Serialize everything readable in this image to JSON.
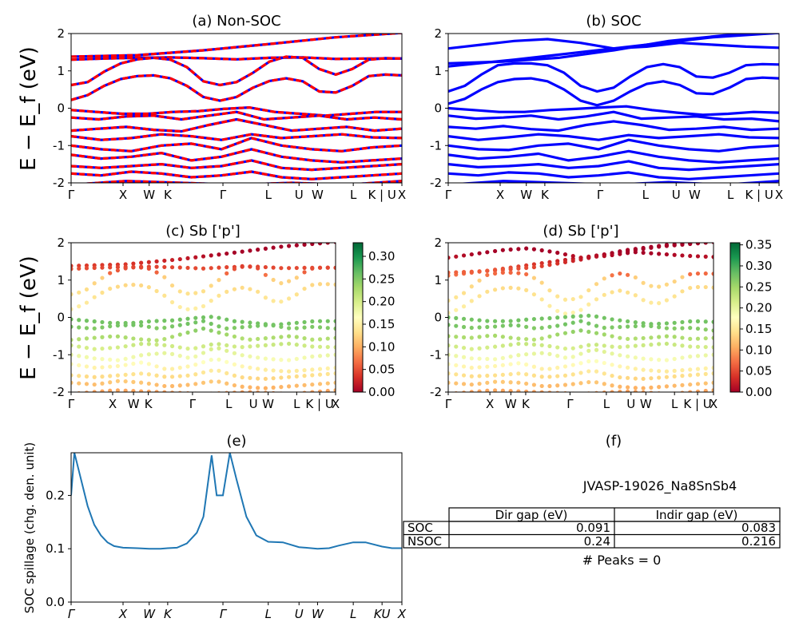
{
  "colors": {
    "band_blue": "#0000ff",
    "band_red": "#ff0000",
    "spillage_line": "#1f77b4"
  },
  "ylabel": "E − E_f (eV)",
  "chart_data": [
    {
      "id": "a",
      "type": "line",
      "title": "(a) Non-SOC",
      "ylim": [
        -2,
        2
      ],
      "yticks": [
        2,
        1,
        0,
        -1,
        -2
      ],
      "xticks": [
        [
          "Γ",
          0
        ],
        [
          "X",
          0.157
        ],
        [
          "W",
          0.236
        ],
        [
          "K",
          0.292
        ],
        [
          "Γ",
          0.459
        ],
        [
          "L",
          0.596
        ],
        [
          "U",
          0.689
        ],
        [
          "W",
          0.745
        ],
        [
          "L",
          0.853
        ],
        [
          "K | U",
          0.94
        ],
        [
          "X",
          1.0
        ]
      ],
      "bands": [
        [
          1.38,
          1.42,
          1.55,
          1.72,
          1.9,
          2.02
        ],
        [
          1.3,
          1.33,
          1.35,
          1.36,
          1.34,
          1.31,
          1.35,
          1.36,
          1.32,
          1.33,
          1.33
        ],
        [
          0.62,
          0.7,
          0.98,
          1.2,
          1.31,
          1.35,
          1.3,
          1.1,
          0.72,
          0.62,
          0.7,
          0.95,
          1.25,
          1.38,
          1.35,
          1.05,
          0.9,
          1.05,
          1.3,
          1.34,
          1.33
        ],
        [
          0.22,
          0.35,
          0.6,
          0.78,
          0.86,
          0.88,
          0.8,
          0.6,
          0.3,
          0.2,
          0.3,
          0.55,
          0.73,
          0.8,
          0.72,
          0.45,
          0.42,
          0.6,
          0.86,
          0.9,
          0.88
        ],
        [
          -0.05,
          -0.1,
          -0.15,
          -0.15,
          -0.1,
          -0.08,
          -0.02,
          0.02,
          -0.1,
          -0.15,
          -0.2,
          -0.15,
          -0.1,
          -0.1
        ],
        [
          -0.25,
          -0.3,
          -0.22,
          -0.2,
          -0.3,
          -0.2,
          -0.1,
          -0.3,
          -0.25,
          -0.2,
          -0.3,
          -0.25,
          -0.3
        ],
        [
          -0.6,
          -0.55,
          -0.5,
          -0.58,
          -0.62,
          -0.45,
          -0.3,
          -0.45,
          -0.6,
          -0.55,
          -0.5,
          -0.6,
          -0.55
        ],
        [
          -0.75,
          -0.85,
          -0.8,
          -0.7,
          -0.75,
          -0.85,
          -0.7,
          -0.8,
          -0.75,
          -0.7,
          -0.78,
          -0.8
        ],
        [
          -1.0,
          -1.1,
          -1.15,
          -1.0,
          -0.95,
          -1.1,
          -0.8,
          -1.0,
          -1.1,
          -1.15,
          -1.05,
          -1.0
        ],
        [
          -1.25,
          -1.35,
          -1.3,
          -1.2,
          -1.4,
          -1.3,
          -1.1,
          -1.3,
          -1.4,
          -1.45,
          -1.4,
          -1.35
        ],
        [
          -1.55,
          -1.6,
          -1.55,
          -1.5,
          -1.6,
          -1.55,
          -1.4,
          -1.6,
          -1.65,
          -1.6,
          -1.55,
          -1.5
        ],
        [
          -1.75,
          -1.8,
          -1.7,
          -1.75,
          -1.85,
          -1.8,
          -1.7,
          -1.85,
          -1.9,
          -1.85,
          -1.8,
          -1.75
        ],
        [
          -2.05,
          -1.95,
          -2.0,
          -2.05,
          -2.0,
          -2.05,
          -1.95
        ]
      ]
    },
    {
      "id": "b",
      "type": "line",
      "title": "(b) SOC",
      "ylim": [
        -2,
        2
      ],
      "yticks": [
        2,
        1,
        0,
        -1,
        -2
      ],
      "xticks": [
        [
          "Γ",
          0
        ],
        [
          "X",
          0.157
        ],
        [
          "W",
          0.236
        ],
        [
          "K",
          0.292
        ],
        [
          "Γ",
          0.459
        ],
        [
          "L",
          0.596
        ],
        [
          "U",
          0.689
        ],
        [
          "W",
          0.745
        ],
        [
          "L",
          0.853
        ],
        [
          "K | U",
          0.94
        ],
        [
          "X",
          1.0
        ]
      ],
      "bands": [
        [
          1.12,
          1.3,
          1.5,
          1.7,
          1.9,
          2.02
        ],
        [
          1.2,
          1.25,
          1.35,
          1.55,
          1.8,
          1.95,
          2.02
        ],
        [
          1.6,
          1.7,
          1.8,
          1.85,
          1.75,
          1.6,
          1.65,
          1.75,
          1.7,
          1.65,
          1.62
        ],
        [
          0.45,
          0.6,
          0.9,
          1.15,
          1.2,
          1.2,
          1.15,
          0.95,
          0.6,
          0.45,
          0.55,
          0.85,
          1.1,
          1.18,
          1.1,
          0.85,
          0.82,
          0.95,
          1.15,
          1.18,
          1.17
        ],
        [
          0.12,
          0.25,
          0.5,
          0.7,
          0.78,
          0.8,
          0.72,
          0.5,
          0.2,
          0.08,
          0.2,
          0.45,
          0.65,
          0.72,
          0.62,
          0.4,
          0.38,
          0.55,
          0.78,
          0.82,
          0.8
        ],
        [
          0.0,
          -0.05,
          -0.1,
          -0.1,
          -0.05,
          -0.02,
          0.02,
          0.05,
          -0.05,
          -0.12,
          -0.18,
          -0.15,
          -0.1,
          -0.12
        ],
        [
          -0.2,
          -0.28,
          -0.25,
          -0.2,
          -0.3,
          -0.22,
          -0.1,
          -0.28,
          -0.25,
          -0.22,
          -0.3,
          -0.28,
          -0.35
        ],
        [
          -0.5,
          -0.55,
          -0.48,
          -0.56,
          -0.6,
          -0.45,
          -0.35,
          -0.45,
          -0.58,
          -0.55,
          -0.5,
          -0.58,
          -0.55
        ],
        [
          -0.75,
          -0.85,
          -0.78,
          -0.7,
          -0.75,
          -0.85,
          -0.72,
          -0.8,
          -0.75,
          -0.7,
          -0.78,
          -0.8
        ],
        [
          -1.0,
          -1.1,
          -1.12,
          -1.0,
          -0.95,
          -1.1,
          -0.85,
          -1.0,
          -1.1,
          -1.15,
          -1.05,
          -1.0
        ],
        [
          -1.25,
          -1.35,
          -1.3,
          -1.22,
          -1.4,
          -1.3,
          -1.15,
          -1.3,
          -1.4,
          -1.45,
          -1.4,
          -1.35
        ],
        [
          -1.5,
          -1.58,
          -1.55,
          -1.5,
          -1.6,
          -1.55,
          -1.42,
          -1.6,
          -1.65,
          -1.6,
          -1.55,
          -1.5
        ],
        [
          -1.75,
          -1.8,
          -1.72,
          -1.75,
          -1.85,
          -1.8,
          -1.72,
          -1.85,
          -1.9,
          -1.85,
          -1.8,
          -1.75
        ],
        [
          -2.05,
          -1.95,
          -2.0,
          -2.05,
          -1.98,
          -2.05,
          -1.95
        ]
      ]
    },
    {
      "id": "c",
      "type": "scatter",
      "title": "(c)  Sb ['p']",
      "ylim": [
        -2,
        2
      ],
      "yticks": [
        2,
        1,
        0,
        -1,
        -2
      ],
      "xticks": [
        [
          "Γ",
          0
        ],
        [
          "X",
          0.157
        ],
        [
          "W",
          0.236
        ],
        [
          "K",
          0.292
        ],
        [
          "Γ",
          0.459
        ],
        [
          "L",
          0.596
        ],
        [
          "U",
          0.689
        ],
        [
          "W",
          0.745
        ],
        [
          "L",
          0.853
        ],
        [
          "K | U",
          0.94
        ],
        [
          "X",
          1.0
        ]
      ],
      "colorbar": {
        "min": 0.0,
        "max": 0.33,
        "ticks": [
          "0.30",
          "0.25",
          "0.20",
          "0.15",
          "0.10",
          "0.05",
          "0.00"
        ],
        "tick_values": [
          0.3,
          0.25,
          0.2,
          0.15,
          0.1,
          0.05,
          0.0
        ],
        "cmap": "RdYlGn"
      }
    },
    {
      "id": "d",
      "type": "scatter",
      "title": "(d) Sb ['p']",
      "ylim": [
        -2,
        2
      ],
      "yticks": [
        2,
        1,
        0,
        -1,
        -2
      ],
      "xticks": [
        [
          "Γ",
          0
        ],
        [
          "X",
          0.157
        ],
        [
          "W",
          0.236
        ],
        [
          "K",
          0.292
        ],
        [
          "Γ",
          0.459
        ],
        [
          "L",
          0.596
        ],
        [
          "U",
          0.689
        ],
        [
          "W",
          0.745
        ],
        [
          "L",
          0.853
        ],
        [
          "K | U",
          0.94
        ],
        [
          "X",
          1.0
        ]
      ],
      "colorbar": {
        "min": 0.0,
        "max": 0.355,
        "ticks": [
          "0.35",
          "0.30",
          "0.25",
          "0.20",
          "0.15",
          "0.10",
          "0.05",
          "0.00"
        ],
        "tick_values": [
          0.35,
          0.3,
          0.25,
          0.2,
          0.15,
          0.1,
          0.05,
          0.0
        ],
        "cmap": "RdYlGn"
      }
    },
    {
      "id": "e",
      "type": "line",
      "title": "(e)",
      "ylabel": "SOC spillage (chg. den. unit)",
      "ylim": [
        0,
        0.28
      ],
      "yticks": [
        "0.0",
        "0.1",
        "0.2"
      ],
      "ytick_values": [
        0,
        0.1,
        0.2
      ],
      "xticks": [
        [
          "Γ",
          0
        ],
        [
          "X",
          0.157
        ],
        [
          "W",
          0.236
        ],
        [
          "K",
          0.292
        ],
        [
          "Γ",
          0.459
        ],
        [
          "L",
          0.596
        ],
        [
          "U",
          0.689
        ],
        [
          "W",
          0.745
        ],
        [
          "L",
          0.853
        ],
        [
          "KU",
          0.94
        ],
        [
          "X",
          1.0
        ]
      ],
      "x": [
        0,
        0.01,
        0.03,
        0.05,
        0.07,
        0.09,
        0.11,
        0.13,
        0.157,
        0.2,
        0.236,
        0.27,
        0.292,
        0.32,
        0.35,
        0.38,
        0.4,
        0.425,
        0.44,
        0.459,
        0.48,
        0.5,
        0.53,
        0.56,
        0.596,
        0.64,
        0.689,
        0.745,
        0.78,
        0.81,
        0.853,
        0.89,
        0.94,
        0.97,
        1.0
      ],
      "y": [
        0.2,
        0.28,
        0.23,
        0.18,
        0.145,
        0.125,
        0.112,
        0.105,
        0.102,
        0.101,
        0.1,
        0.1,
        0.101,
        0.102,
        0.11,
        0.13,
        0.16,
        0.275,
        0.2,
        0.2,
        0.28,
        0.23,
        0.16,
        0.125,
        0.113,
        0.112,
        0.103,
        0.1,
        0.101,
        0.106,
        0.112,
        0.112,
        0.104,
        0.101,
        0.101
      ]
    },
    {
      "id": "f",
      "type": "table",
      "title": "(f)",
      "subtitle": "JVASP-19026_Na8SnSb4",
      "columns": [
        "Dir gap (eV)",
        "Indir gap (eV)"
      ],
      "rows": [
        {
          "label": "SOC",
          "values": [
            "0.091",
            "0.083"
          ]
        },
        {
          "label": "NSOC",
          "values": [
            "0.24",
            "0.216"
          ]
        }
      ],
      "note": "# Peaks = 0"
    }
  ]
}
